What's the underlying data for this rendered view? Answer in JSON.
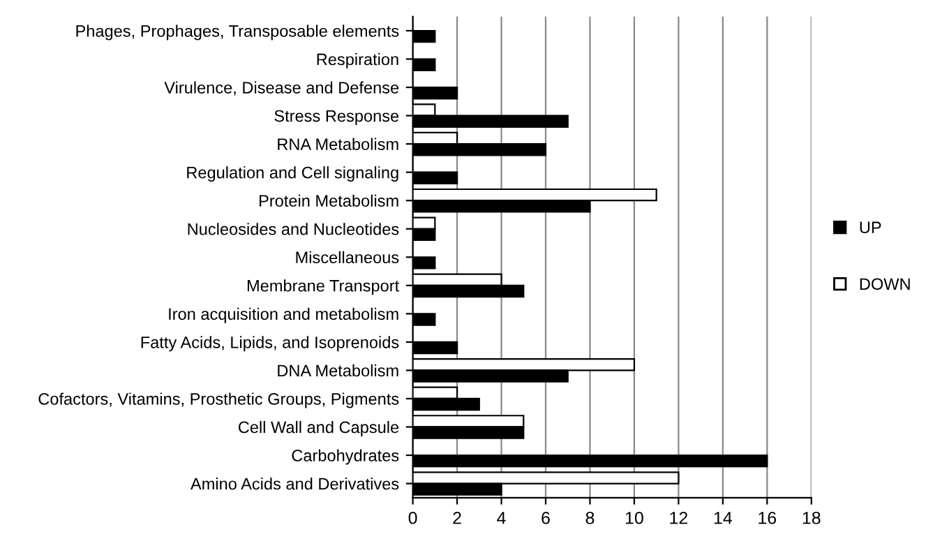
{
  "chart_data": {
    "type": "bar",
    "orientation": "horizontal",
    "categories": [
      "Phages, Prophages, Transposable elements",
      "Respiration",
      "Virulence, Disease and Defense",
      "Stress Response",
      "RNA Metabolism",
      "Regulation and Cell signaling",
      "Protein Metabolism",
      "Nucleosides and Nucleotides",
      "Miscellaneous",
      "Membrane Transport",
      "Iron acquisition and metabolism",
      "Fatty Acids, Lipids, and Isoprenoids",
      "DNA Metabolism",
      "Cofactors, Vitamins, Prosthetic Groups, Pigments",
      "Cell Wall and Capsule",
      "Carbohydrates",
      "Amino Acids and Derivatives"
    ],
    "series": [
      {
        "name": "DOWN",
        "color": "#ffffff",
        "values": [
          null,
          null,
          null,
          1,
          2,
          null,
          11,
          1,
          null,
          4,
          null,
          null,
          10,
          2,
          5,
          null,
          12
        ]
      },
      {
        "name": "UP",
        "color": "#000000",
        "values": [
          1,
          1,
          2,
          7,
          6,
          2,
          8,
          1,
          1,
          5,
          1,
          2,
          7,
          3,
          5,
          16,
          4
        ]
      }
    ],
    "xlim": [
      0,
      18
    ],
    "xticks": [
      0,
      2,
      4,
      6,
      8,
      10,
      12,
      14,
      16,
      18
    ],
    "grid": "x",
    "legend": "right"
  }
}
